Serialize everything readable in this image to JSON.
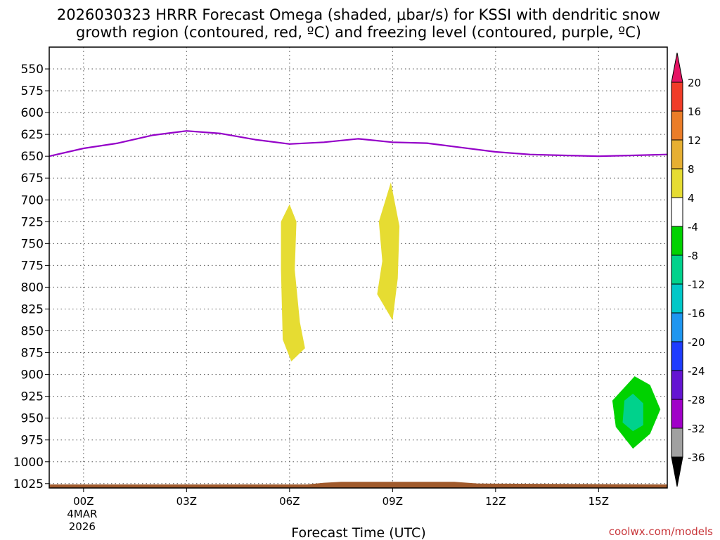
{
  "chart_data": {
    "type": "heatmap",
    "title_line1": "2026030323 HRRR Forecast Omega (shaded, μbar/s) for KSSI with dendritic snow",
    "title_line2": "growth region (contoured, red, ºC) and freezing level (contoured, purple, ºC)",
    "xlabel": "Forecast Time (UTC)",
    "credit": "coolwx.com/models",
    "x_ticks": [
      {
        "hour": 0,
        "label": "00Z",
        "sub1": "4MAR",
        "sub2": "2026"
      },
      {
        "hour": 3,
        "label": "03Z"
      },
      {
        "hour": 6,
        "label": "06Z"
      },
      {
        "hour": 9,
        "label": "09Z"
      },
      {
        "hour": 12,
        "label": "12Z"
      },
      {
        "hour": 15,
        "label": "15Z"
      }
    ],
    "x_range_hours": [
      -1,
      17
    ],
    "y_ticks": [
      550,
      575,
      600,
      625,
      650,
      675,
      700,
      725,
      750,
      775,
      800,
      825,
      850,
      875,
      900,
      925,
      950,
      975,
      1000,
      1025
    ],
    "y_range_hpa": [
      525,
      1030
    ],
    "freezing_level": {
      "color": "#9400c8",
      "points": [
        [
          -1,
          650
        ],
        [
          0,
          641
        ],
        [
          1,
          635
        ],
        [
          2,
          626
        ],
        [
          3,
          621
        ],
        [
          4,
          624
        ],
        [
          5,
          631
        ],
        [
          6,
          636
        ],
        [
          7,
          634
        ],
        [
          8,
          630
        ],
        [
          9,
          634
        ],
        [
          10,
          635
        ],
        [
          11,
          640
        ],
        [
          12,
          645
        ],
        [
          13,
          648
        ],
        [
          14,
          649
        ],
        [
          15,
          650
        ],
        [
          16,
          649
        ],
        [
          17,
          648
        ]
      ]
    },
    "omega_shaded": [
      {
        "level": "4 to 8",
        "color": "#e6dc32",
        "polygon": [
          [
            6.0,
            705
          ],
          [
            6.2,
            725
          ],
          [
            6.15,
            780
          ],
          [
            6.3,
            840
          ],
          [
            6.45,
            870
          ],
          [
            6.05,
            885
          ],
          [
            5.8,
            860
          ],
          [
            5.75,
            780
          ],
          [
            5.75,
            725
          ]
        ]
      },
      {
        "level": "4 to 8",
        "color": "#e6dc32",
        "polygon": [
          [
            8.95,
            680
          ],
          [
            9.2,
            730
          ],
          [
            9.15,
            790
          ],
          [
            9.0,
            838
          ],
          [
            8.55,
            808
          ],
          [
            8.7,
            770
          ],
          [
            8.6,
            725
          ]
        ]
      },
      {
        "level": "-8 to -4",
        "color": "#00d200",
        "polygon": [
          [
            16.05,
            902
          ],
          [
            16.5,
            912
          ],
          [
            16.8,
            940
          ],
          [
            16.5,
            968
          ],
          [
            16.0,
            985
          ],
          [
            15.5,
            960
          ],
          [
            15.4,
            930
          ]
        ]
      },
      {
        "level": "-12 to -8",
        "color": "#00d28c",
        "polygon": [
          [
            16.0,
            922
          ],
          [
            16.3,
            933
          ],
          [
            16.3,
            958
          ],
          [
            16.0,
            965
          ],
          [
            15.7,
            955
          ],
          [
            15.75,
            930
          ]
        ]
      }
    ],
    "terrain": {
      "color": "#a05a2c",
      "points": [
        [
          -1,
          1026
        ],
        [
          6.5,
          1026
        ],
        [
          7.0,
          1024
        ],
        [
          7.5,
          1023
        ],
        [
          10.8,
          1023
        ],
        [
          11.5,
          1025
        ],
        [
          17,
          1026
        ]
      ],
      "base_hpa": 1030
    },
    "colorbar": {
      "labels": [
        "20",
        "16",
        "12",
        "8",
        "4",
        "-4",
        "-8",
        "-12",
        "-16",
        "-20",
        "-24",
        "-28",
        "-32",
        "-36"
      ],
      "colors": [
        "#e61464",
        "#f03c28",
        "#eb7d28",
        "#e6af32",
        "#e6dc32",
        "#ffffff",
        "#00d200",
        "#00d28c",
        "#00c8c8",
        "#1e96f0",
        "#1e3cff",
        "#6414d2",
        "#a000c8",
        "#a0a0a0",
        "#000000"
      ]
    }
  }
}
